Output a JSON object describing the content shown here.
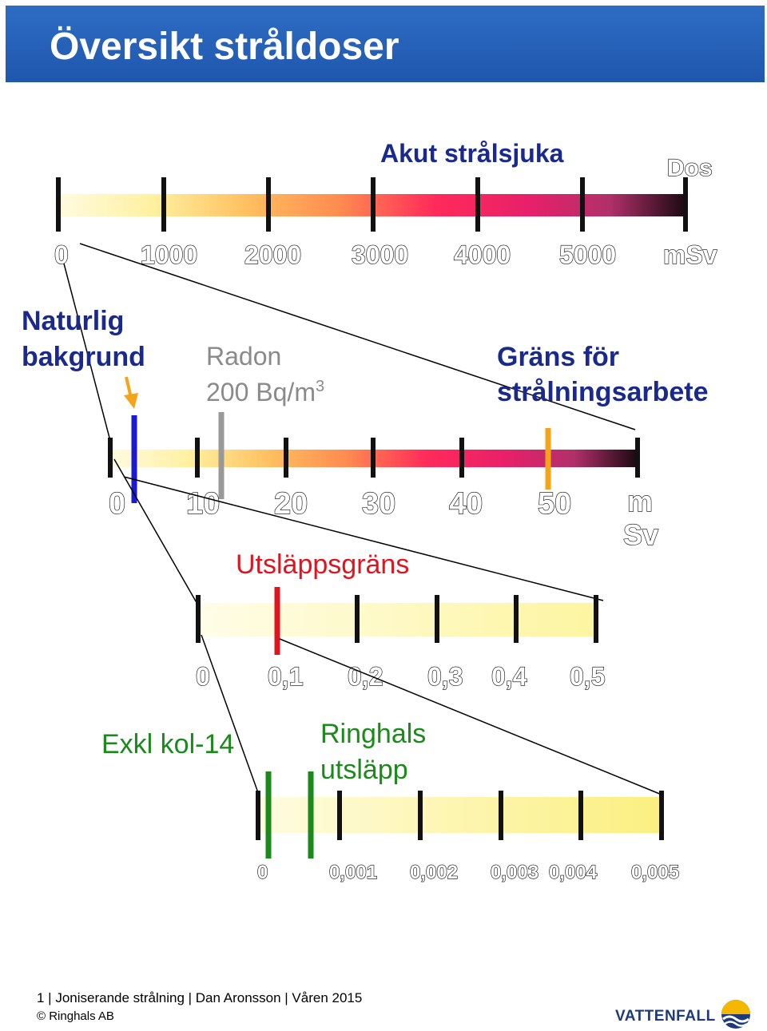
{
  "header": {
    "title": "Översikt stråldoser"
  },
  "scale1": {
    "title": "Akut strålsjuka",
    "dose_label": "Dos",
    "ticks": [
      "0",
      "1000",
      "2000",
      "3000",
      "4000",
      "5000",
      "mSv"
    ]
  },
  "scale2": {
    "natural_bg": [
      "Naturlig",
      "bakgrund"
    ],
    "radon_line1": "Radon",
    "radon_line2": "200 Bq/m",
    "radon_sup": "3",
    "limit_label": [
      "Gräns för",
      "strålningsarbete"
    ],
    "ticks": [
      "0",
      "10",
      "20",
      "30",
      "40",
      "50"
    ],
    "unit": [
      "m",
      "Sv"
    ]
  },
  "scale3": {
    "release_limit": "Utsläppsgräns",
    "ticks": [
      "0",
      "0,1",
      "0,2",
      "0,3",
      "0,4",
      "0,5"
    ]
  },
  "scale4": {
    "excl_label": "Exkl kol-14",
    "ringhals": [
      "Ringhals",
      "utsläpp"
    ],
    "ticks": [
      "0",
      "0,001",
      "0,002",
      "0,003",
      "0,004",
      "0,005"
    ]
  },
  "colors": {
    "natural": "#1a1ad4",
    "radon": "#999999",
    "limit": "#f5a41a",
    "release": "#e0141e",
    "ringhals": "#1a8a1a",
    "label_blue": "#1a2a8c",
    "label_red": "#e0141e",
    "label_green": "#1a8a1a"
  },
  "footer": {
    "text": "1  |  Joniserande strålning |  Dan Aronsson  |  Våren 2015",
    "copyright": "© Ringhals AB",
    "logo": "VATTENFALL",
    "logo_icon": "vattenfall-sun-wave-icon"
  }
}
